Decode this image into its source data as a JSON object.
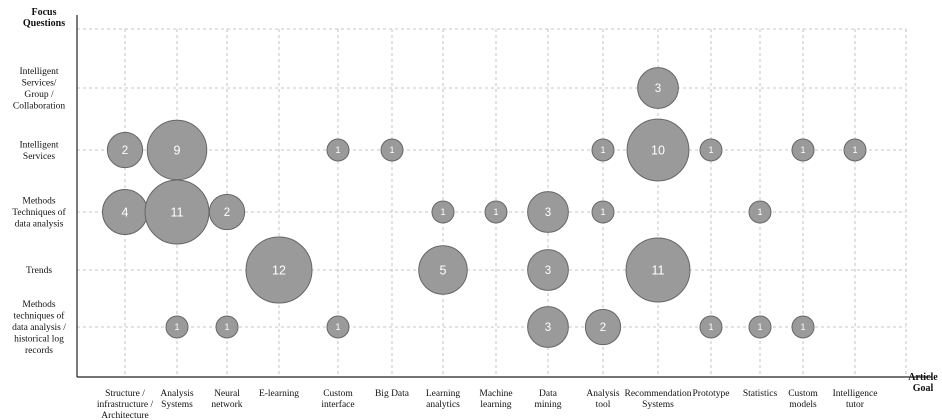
{
  "chart_data": {
    "type": "scatter",
    "encoding": "bubble",
    "xlabel": "Article Goal",
    "ylabel": "Focus Questions",
    "grid": true,
    "grid_style": "dashed",
    "bubble_color": "#9a9a9a",
    "bubble_stroke": "#666666",
    "categories_x": [
      "Structure / infrastructure / Architecture",
      "Analysis Systems",
      "Neural network",
      "E-learning",
      "Custom interface",
      "Big Data",
      "Learning analytics",
      "Machine learning",
      "Data mining",
      "Analysis tool",
      "Recommendation Systems",
      "Prototype",
      "Statistics",
      "Custom models",
      "Intelligence tutor"
    ],
    "categories_y": [
      "Intelligent Services/ Group / Collaboration",
      "Intelligent Services",
      "Methods Techniques of data analysis",
      "Trends",
      "Methods techniques of data analysis / historical log records"
    ],
    "x_tick_lines": [
      [
        "Structure /",
        "infrastructure  /",
        "Architecture"
      ],
      [
        "Analysis",
        "Systems"
      ],
      [
        "Neural",
        "network"
      ],
      [
        "E-learning"
      ],
      [
        "Custom",
        "interface"
      ],
      [
        "Big Data"
      ],
      [
        "Learning",
        "analytics"
      ],
      [
        "Machine",
        "learning"
      ],
      [
        "Data",
        "mining"
      ],
      [
        "Analysis",
        "tool"
      ],
      [
        "Recommendation",
        "Systems"
      ],
      [
        "Prototype"
      ],
      [
        "Statistics"
      ],
      [
        "Custom",
        "models"
      ],
      [
        "Intelligence",
        "tutor"
      ]
    ],
    "y_tick_lines": [
      [
        "Intelligent",
        "Services/",
        "Group /",
        "Collaboration"
      ],
      [
        "Intelligent",
        "Services"
      ],
      [
        "Methods",
        "Techniques of",
        "data analysis"
      ],
      [
        "Trends"
      ],
      [
        "Methods",
        "techniques of",
        "data analysis /",
        "historical log",
        "records"
      ]
    ],
    "xlabel_lines": [
      "Article",
      "Goal"
    ],
    "ylabel_lines": [
      "Focus",
      "Questions"
    ],
    "points": [
      {
        "x": "Recommendation Systems",
        "y": "Intelligent Services/ Group / Collaboration",
        "value": 3
      },
      {
        "x": "Structure / infrastructure / Architecture",
        "y": "Intelligent Services",
        "value": 2
      },
      {
        "x": "Analysis Systems",
        "y": "Intelligent Services",
        "value": 9
      },
      {
        "x": "Custom interface",
        "y": "Intelligent Services",
        "value": 1
      },
      {
        "x": "Big Data",
        "y": "Intelligent Services",
        "value": 1
      },
      {
        "x": "Analysis tool",
        "y": "Intelligent Services",
        "value": 1
      },
      {
        "x": "Recommendation Systems",
        "y": "Intelligent Services",
        "value": 10
      },
      {
        "x": "Prototype",
        "y": "Intelligent Services",
        "value": 1
      },
      {
        "x": "Custom models",
        "y": "Intelligent Services",
        "value": 1
      },
      {
        "x": "Intelligence tutor",
        "y": "Intelligent Services",
        "value": 1
      },
      {
        "x": "Structure / infrastructure / Architecture",
        "y": "Methods Techniques of data analysis",
        "value": 4
      },
      {
        "x": "Analysis Systems",
        "y": "Methods Techniques of data analysis",
        "value": 11
      },
      {
        "x": "Neural network",
        "y": "Methods Techniques of data analysis",
        "value": 2
      },
      {
        "x": "Learning analytics",
        "y": "Methods Techniques of data analysis",
        "value": 1
      },
      {
        "x": "Machine learning",
        "y": "Methods Techniques of data analysis",
        "value": 1
      },
      {
        "x": "Data mining",
        "y": "Methods Techniques of data analysis",
        "value": 3
      },
      {
        "x": "Analysis tool",
        "y": "Methods Techniques of data analysis",
        "value": 1
      },
      {
        "x": "Statistics",
        "y": "Methods Techniques of data analysis",
        "value": 1
      },
      {
        "x": "E-learning",
        "y": "Trends",
        "value": 12
      },
      {
        "x": "Learning analytics",
        "y": "Trends",
        "value": 5
      },
      {
        "x": "Data mining",
        "y": "Trends",
        "value": 3
      },
      {
        "x": "Recommendation Systems",
        "y": "Trends",
        "value": 11
      },
      {
        "x": "Analysis Systems",
        "y": "Methods techniques of data analysis / historical log records",
        "value": 1
      },
      {
        "x": "Neural network",
        "y": "Methods techniques of data analysis / historical log records",
        "value": 1
      },
      {
        "x": "Custom interface",
        "y": "Methods techniques of data analysis / historical log records",
        "value": 1
      },
      {
        "x": "Data mining",
        "y": "Methods techniques of data analysis / historical log records",
        "value": 3
      },
      {
        "x": "Analysis tool",
        "y": "Methods techniques of data analysis / historical log records",
        "value": 2
      },
      {
        "x": "Prototype",
        "y": "Methods techniques of data analysis / historical log records",
        "value": 1
      },
      {
        "x": "Statistics",
        "y": "Methods techniques of data analysis / historical log records",
        "value": 1
      },
      {
        "x": "Custom models",
        "y": "Methods techniques of data analysis / historical log records",
        "value": 1
      }
    ]
  }
}
